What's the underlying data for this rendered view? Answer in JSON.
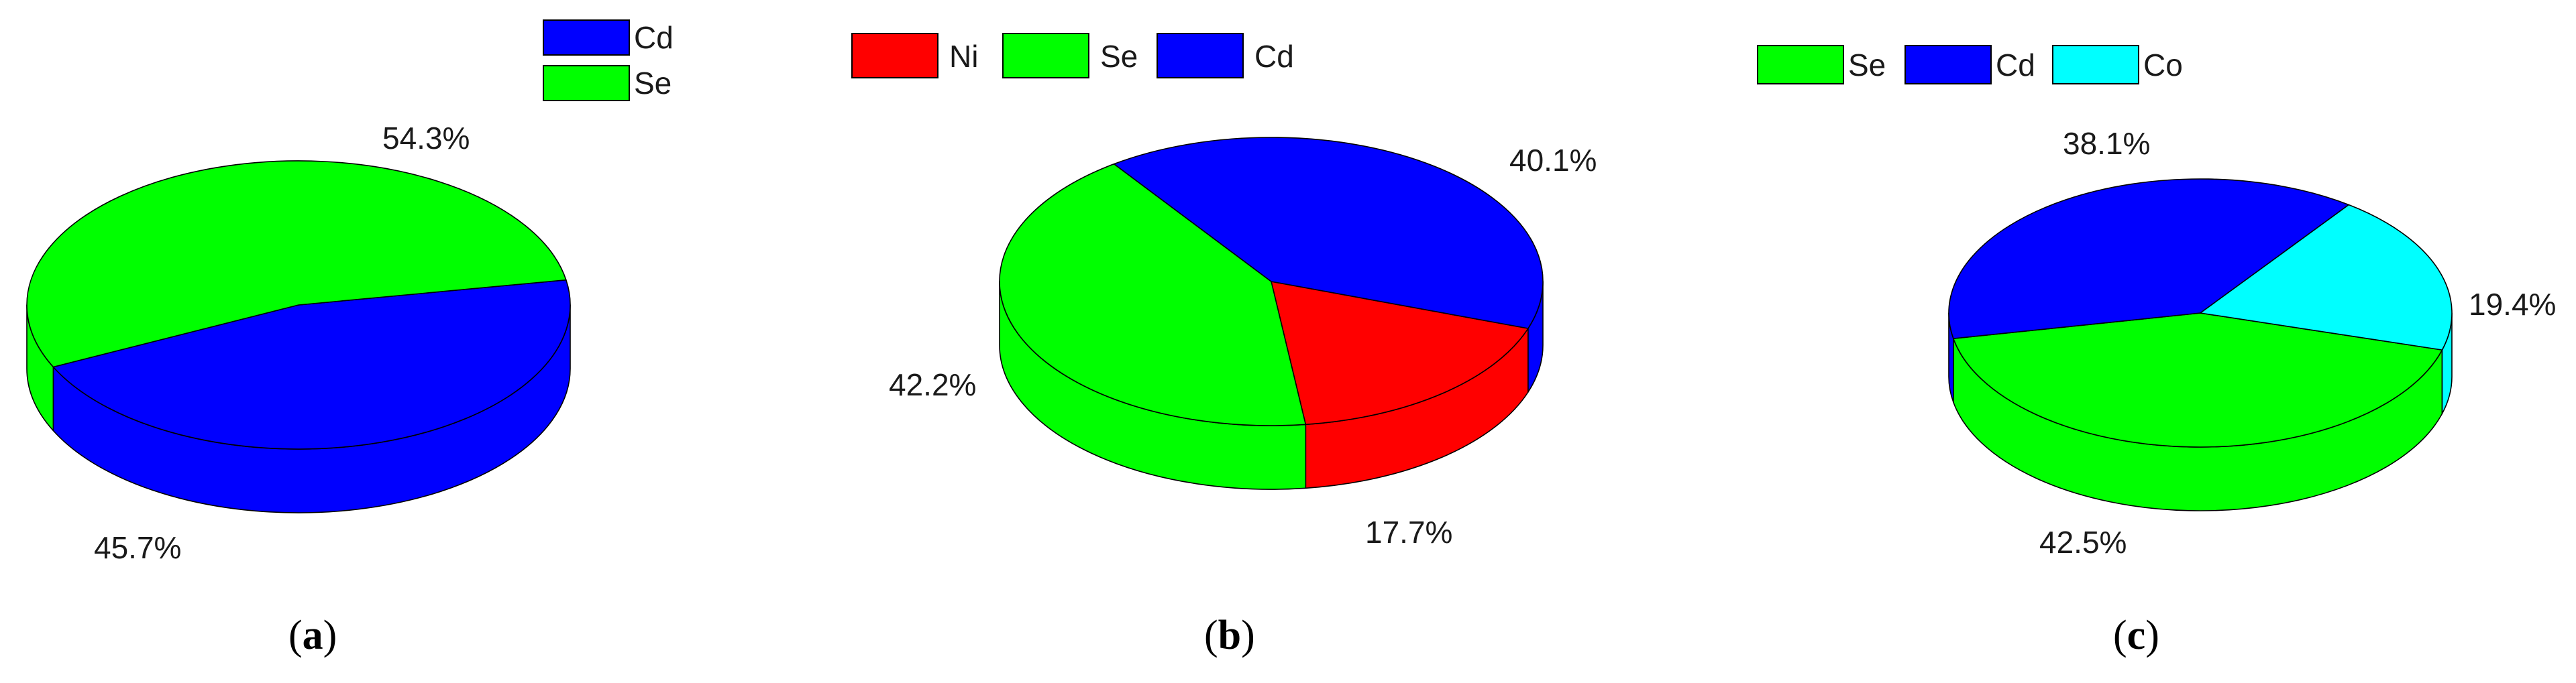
{
  "chart_data": [
    {
      "type": "pie",
      "style": "3d",
      "legend": "top-right",
      "caption": "a",
      "slices": [
        {
          "name": "Cd",
          "value": 45.7,
          "label": "45.7%",
          "color": "#0000ff"
        },
        {
          "name": "Se",
          "value": 54.3,
          "label": "54.3%",
          "color": "#00ff00"
        }
      ]
    },
    {
      "type": "pie",
      "style": "3d",
      "legend": "top",
      "caption": "b",
      "slices": [
        {
          "name": "Ni",
          "value": 17.7,
          "label": "17.7%",
          "color": "#ff0000"
        },
        {
          "name": "Se",
          "value": 42.2,
          "label": "42.2%",
          "color": "#00ff00"
        },
        {
          "name": "Cd",
          "value": 40.1,
          "label": "40.1%",
          "color": "#0000ff"
        }
      ]
    },
    {
      "type": "pie",
      "style": "3d",
      "legend": "top",
      "caption": "c",
      "slices": [
        {
          "name": "Se",
          "value": 42.5,
          "label": "42.5%",
          "color": "#00ff00"
        },
        {
          "name": "Cd",
          "value": 38.1,
          "label": "38.1%",
          "color": "#0000ff"
        },
        {
          "name": "Co",
          "value": 19.4,
          "label": "19.4%",
          "color": "#00ffff"
        }
      ]
    }
  ]
}
